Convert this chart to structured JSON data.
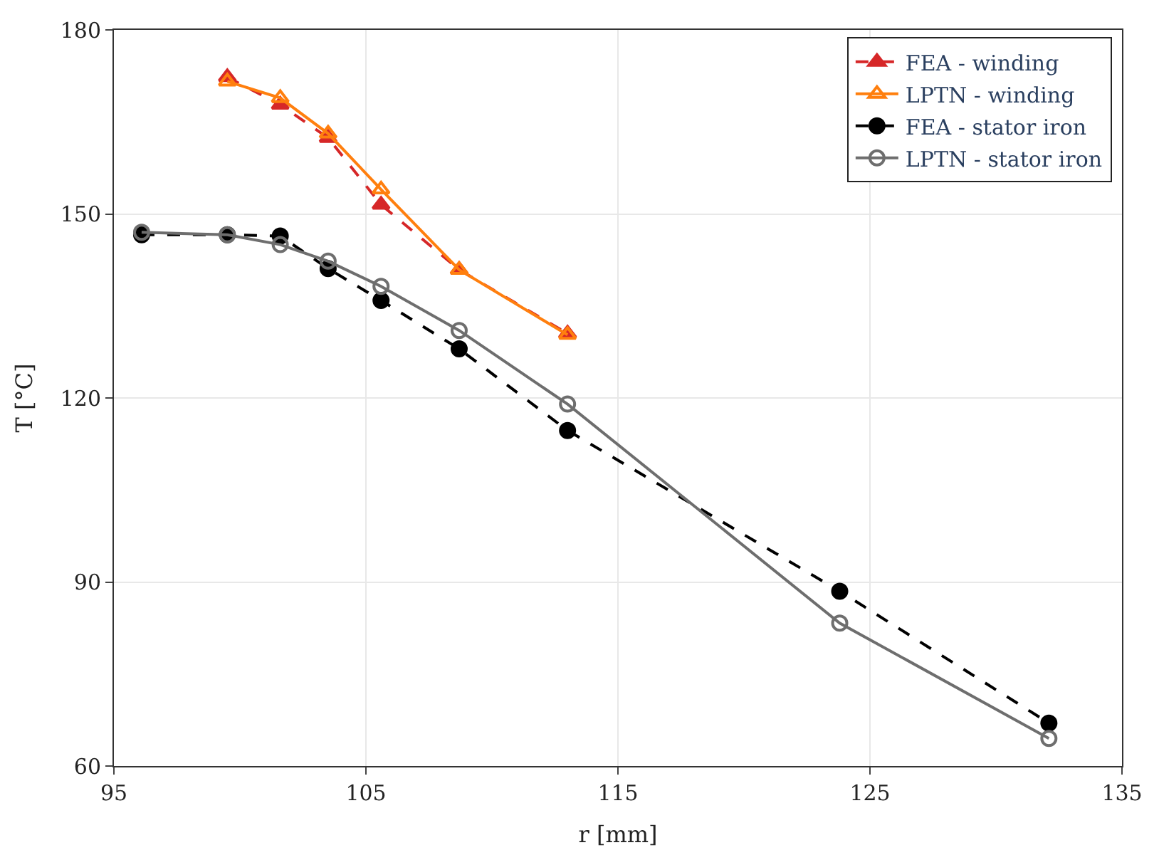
{
  "chart_data": {
    "type": "line",
    "xlabel": "r [mm]",
    "ylabel": "T [°C]",
    "xlim": [
      95,
      135
    ],
    "xticks": [
      95,
      105,
      115,
      125,
      135
    ],
    "ylim": [
      60,
      180
    ],
    "yticks": [
      60,
      90,
      120,
      150,
      180
    ],
    "grid": true,
    "legend": "top right",
    "series": [
      {
        "name": "FEA - winding",
        "color": "#d62728",
        "marker": "triangle",
        "line_style": "dashed",
        "x": [
          99.5,
          101.6,
          103.5,
          105.6,
          108.7,
          113.0
        ],
        "values": [
          172.3,
          167.8,
          162.4,
          151.5,
          140.9,
          130.5
        ]
      },
      {
        "name": "LPTN - winding",
        "color": "#ff7f0e",
        "marker": "triangle",
        "line_style": "solid",
        "x": [
          99.5,
          101.6,
          103.5,
          105.6,
          108.7,
          113.0
        ],
        "values": [
          171.6,
          168.9,
          163.1,
          154.0,
          140.9,
          130.3
        ]
      },
      {
        "name": "FEA - stator iron",
        "color": "#000000",
        "marker": "circle",
        "line_style": "dashed",
        "x": [
          96.1,
          99.5,
          101.6,
          103.5,
          105.6,
          108.7,
          113.0,
          123.8,
          132.1
        ],
        "values": [
          146.6,
          146.6,
          146.4,
          141.1,
          135.9,
          128.0,
          114.7,
          88.5,
          67.0
        ]
      },
      {
        "name": "LPTN - stator iron",
        "color": "#6e6e6e",
        "marker": "circle",
        "line_style": "solid",
        "x": [
          96.1,
          99.5,
          101.6,
          103.5,
          105.6,
          108.7,
          113.0,
          123.8,
          132.1
        ],
        "values": [
          147.0,
          146.6,
          145.0,
          142.3,
          138.2,
          131.0,
          119.0,
          83.3,
          64.5
        ]
      }
    ]
  }
}
